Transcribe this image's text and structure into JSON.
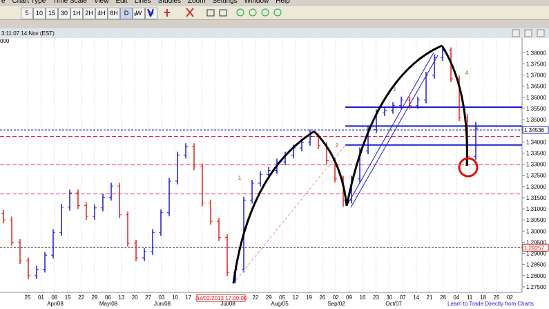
{
  "menu": [
    "e",
    "Chart Type",
    "Time Scale",
    "View",
    "Edit",
    "Lines",
    "Studies",
    "Zoom",
    "Settings",
    "Window",
    "Help"
  ],
  "toolbar": {
    "timeframes": [
      "5",
      "10",
      "15",
      "30",
      "1H",
      "2H",
      "4H",
      "8H",
      "D",
      "W",
      "M"
    ]
  },
  "window_title": "3:11:07 14 Nov (EST)",
  "corner_label": "000",
  "footer_link": "Learn to Trade Directly from Charts",
  "chart_data": {
    "type": "ohlc",
    "open": [
      1.308,
      1.305,
      1.2949,
      1.2867,
      1.28,
      1.2829,
      1.2892,
      1.2994,
      1.3107,
      1.3171,
      1.3114,
      1.3066,
      1.3104,
      1.3152,
      1.3202,
      1.3073,
      1.2946,
      1.288,
      1.2908,
      1.2994,
      1.3082,
      1.3224,
      1.3341,
      1.3379,
      1.3288,
      1.3126,
      1.3044,
      1.2971,
      1.2813,
      1.2829,
      1.3139,
      1.3215,
      1.3253,
      1.3272,
      1.331,
      1.3341,
      1.3373,
      1.3398,
      1.3424,
      1.3383,
      1.3316,
      1.3234,
      1.3139,
      1.3234,
      1.336,
      1.3455,
      1.3531,
      1.3541,
      1.3563,
      1.3588,
      1.3563,
      1.3588,
      1.3699,
      1.3778,
      1.3809,
      1.3683,
      1.3509,
      1.3335
    ],
    "high": [
      1.3095,
      1.3065,
      1.2964,
      1.2882,
      1.2844,
      1.2907,
      1.3009,
      1.3122,
      1.3186,
      1.3186,
      1.3129,
      1.3119,
      1.3167,
      1.3217,
      1.3217,
      1.3088,
      1.2961,
      1.2923,
      1.3009,
      1.3097,
      1.3239,
      1.3356,
      1.3394,
      1.3394,
      1.3303,
      1.3141,
      1.3059,
      1.2986,
      1.2844,
      1.3154,
      1.323,
      1.3268,
      1.3287,
      1.3325,
      1.3356,
      1.3388,
      1.3413,
      1.3455,
      1.3439,
      1.3398,
      1.3331,
      1.3249,
      1.3249,
      1.3375,
      1.347,
      1.3546,
      1.3556,
      1.3578,
      1.3603,
      1.3603,
      1.3603,
      1.3714,
      1.3793,
      1.383,
      1.3824,
      1.3698,
      1.3524,
      1.349
    ],
    "low": [
      1.3035,
      1.2934,
      1.2852,
      1.2785,
      1.2785,
      1.2814,
      1.2877,
      1.2979,
      1.3092,
      1.3099,
      1.3051,
      1.3051,
      1.3089,
      1.3137,
      1.3058,
      1.2931,
      1.2865,
      1.2865,
      1.2893,
      1.2979,
      1.3067,
      1.3209,
      1.3326,
      1.3273,
      1.3111,
      1.3029,
      1.2956,
      1.2798,
      1.2768,
      1.2814,
      1.3124,
      1.32,
      1.3238,
      1.3257,
      1.3295,
      1.3326,
      1.3358,
      1.3383,
      1.3368,
      1.3301,
      1.3219,
      1.311,
      1.3124,
      1.3219,
      1.3345,
      1.344,
      1.3516,
      1.3526,
      1.3548,
      1.3548,
      1.3548,
      1.3573,
      1.3684,
      1.3763,
      1.3668,
      1.3494,
      1.33,
      1.332
    ],
    "close": [
      1.305,
      1.2949,
      1.2867,
      1.28,
      1.2829,
      1.2892,
      1.2994,
      1.3107,
      1.3171,
      1.3114,
      1.3066,
      1.3104,
      1.3152,
      1.3202,
      1.3073,
      1.2946,
      1.288,
      1.2908,
      1.2994,
      1.3082,
      1.3224,
      1.3341,
      1.3379,
      1.3288,
      1.3126,
      1.3044,
      1.2971,
      1.2813,
      1.2829,
      1.3139,
      1.3215,
      1.3253,
      1.3272,
      1.331,
      1.3341,
      1.3373,
      1.3398,
      1.3424,
      1.3383,
      1.3316,
      1.3234,
      1.3139,
      1.3234,
      1.336,
      1.3455,
      1.3531,
      1.3541,
      1.3563,
      1.3588,
      1.3563,
      1.3588,
      1.3699,
      1.3778,
      1.3809,
      1.3683,
      1.3509,
      1.3335,
      1.3462
    ],
    "up_color": "#1a1acc",
    "down_color": "#e02020",
    "ylim": [
      1.2725,
      1.3866
    ],
    "yticks": [
      {
        "value": 1.275,
        "label": "1.27500"
      },
      {
        "value": 1.28,
        "label": "1.28000"
      },
      {
        "value": 1.285,
        "label": "1.28500"
      },
      {
        "value": 1.29,
        "label": "1.29000"
      },
      {
        "value": 1.295,
        "label": "1.29500"
      },
      {
        "value": 1.3,
        "label": "1.30000"
      },
      {
        "value": 1.305,
        "label": "1.30500"
      },
      {
        "value": 1.31,
        "label": "1.31000"
      },
      {
        "value": 1.315,
        "label": "1.31500"
      },
      {
        "value": 1.32,
        "label": "1.32000"
      },
      {
        "value": 1.325,
        "label": "1.32500"
      },
      {
        "value": 1.33,
        "label": "1.33000"
      },
      {
        "value": 1.335,
        "label": "1.33500"
      },
      {
        "value": 1.34,
        "label": "1.34000"
      },
      {
        "value": 1.345,
        "label": "1.34500"
      },
      {
        "value": 1.35,
        "label": "1.35000"
      },
      {
        "value": 1.355,
        "label": "1.35500"
      },
      {
        "value": 1.36,
        "label": "1.36000"
      },
      {
        "value": 1.365,
        "label": "1.36500"
      },
      {
        "value": 1.37,
        "label": "1.37000"
      },
      {
        "value": 1.375,
        "label": "1.37500"
      },
      {
        "value": 1.38,
        "label": "1.38000"
      }
    ],
    "x_day_labels": [
      "25",
      "01",
      "08",
      "15",
      "22",
      "29",
      "06",
      "13",
      "20",
      "27",
      "03",
      "10",
      "17",
      null,
      null,
      "08",
      "15",
      "22",
      "29",
      "05",
      "12",
      "19",
      "26",
      "02",
      "09",
      "16",
      "23",
      "30",
      "07",
      "14",
      "21",
      "28",
      "04",
      "11",
      "18",
      "25",
      "02"
    ],
    "x_month_labels": [
      "Apr/08",
      "May/08",
      "Jun/08",
      "Jul/08",
      "Aug/05",
      "Sep/02",
      "Oct/07"
    ],
    "cursor_date_label": "Jul/02/2013 17:00:00",
    "levels": [
      {
        "value": 1.3556,
        "color": "#1a1acc",
        "style": "solid"
      },
      {
        "value": 1.3471,
        "color": "#1a1acc",
        "style": "solid"
      },
      {
        "value": 1.3386,
        "color": "#1a1acc",
        "style": "solid"
      },
      {
        "value": 1.3424,
        "color": "#e0206a",
        "style": "dashed"
      },
      {
        "value": 1.3297,
        "color": "#e0206a",
        "style": "dashed"
      },
      {
        "value": 1.3167,
        "color": "#e0206a",
        "style": "dashed"
      },
      {
        "value": 1.34536,
        "color": "#1a1acc",
        "style": "dotted",
        "label": "1.34536"
      },
      {
        "value": 1.29257,
        "color": "#222222",
        "style": "dotted",
        "label": "1.29257"
      }
    ],
    "annotations": [
      "1",
      "2",
      "3",
      "4"
    ]
  }
}
